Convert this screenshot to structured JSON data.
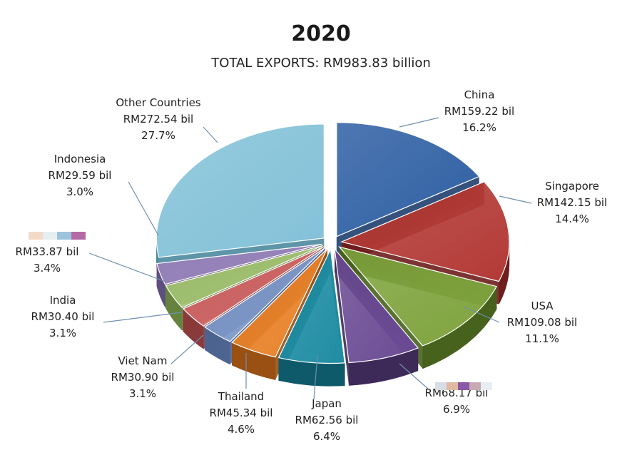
{
  "chart_data": {
    "type": "pie",
    "title": "2020",
    "subtitle": "TOTAL EXPORTS: RM983.83  billion",
    "total": 983.83,
    "unit": "RM billion",
    "slices": [
      {
        "name": "China",
        "value": 159.22,
        "value_label": "RM159.22 bil",
        "pct": 16.2,
        "pct_label": "16.2%",
        "color": "#2e5fa3",
        "dark": "#1f3f6f"
      },
      {
        "name": "Singapore",
        "value": 142.15,
        "value_label": "RM142.15 bil",
        "pct": 14.4,
        "pct_label": "14.4%",
        "color": "#b33a36",
        "dark": "#6e1e1c"
      },
      {
        "name": "USA",
        "value": 109.08,
        "value_label": "RM109.08 bil",
        "pct": 11.1,
        "pct_label": "11.1%",
        "color": "#7fa33d",
        "dark": "#47621d"
      },
      {
        "name": "",
        "value": 68.17,
        "value_label": "RM68.17 bil",
        "pct": 6.9,
        "pct_label": "6.9%",
        "color": "#6b4b94",
        "dark": "#3d2a58"
      },
      {
        "name": "Japan",
        "value": 62.56,
        "value_label": "RM62.56 bil",
        "pct": 6.4,
        "pct_label": "6.4%",
        "color": "#1f8da3",
        "dark": "#0f5a6a"
      },
      {
        "name": "Thailand",
        "value": 45.34,
        "value_label": "RM45.34 bil",
        "pct": 4.6,
        "pct_label": "4.6%",
        "color": "#e8822a",
        "dark": "#995012"
      },
      {
        "name": "Viet Nam",
        "value": 30.9,
        "value_label": "RM30.90 bil",
        "pct": 3.1,
        "pct_label": "3.1%",
        "color": "#7d98c9",
        "dark": "#4d6390"
      },
      {
        "name": "India",
        "value": 30.4,
        "value_label": "RM30.40 bil",
        "pct": 3.1,
        "pct_label": "3.1%",
        "color": "#d06868",
        "dark": "#8a3a3a"
      },
      {
        "name": "",
        "value": 33.87,
        "value_label": "RM33.87 bil",
        "pct": 3.4,
        "pct_label": "3.4%",
        "color": "#a3c373",
        "dark": "#66833e"
      },
      {
        "name": "Indonesia",
        "value": 29.59,
        "value_label": "RM29.59 bil",
        "pct": 3.0,
        "pct_label": "3.0%",
        "color": "#9a86bd",
        "dark": "#5e4f7e"
      },
      {
        "name": "Other Countries",
        "value": 272.54,
        "value_label": "RM272.54 bil",
        "pct": 27.7,
        "pct_label": "27.7%",
        "color": "#83c1d8",
        "dark": "#4c8aa0"
      }
    ],
    "legend": "none",
    "style": "3d-exploded-pie"
  },
  "redacted_colors": {
    "label_3": [
      "#d6dde4",
      "#e0b9a0",
      "#8a5aa8",
      "#c9a9b3",
      "#e7eef2"
    ],
    "label_8": [
      "#f2d9c8",
      "#e6eef0",
      "#9dc3dc",
      "#b56aa6"
    ]
  }
}
